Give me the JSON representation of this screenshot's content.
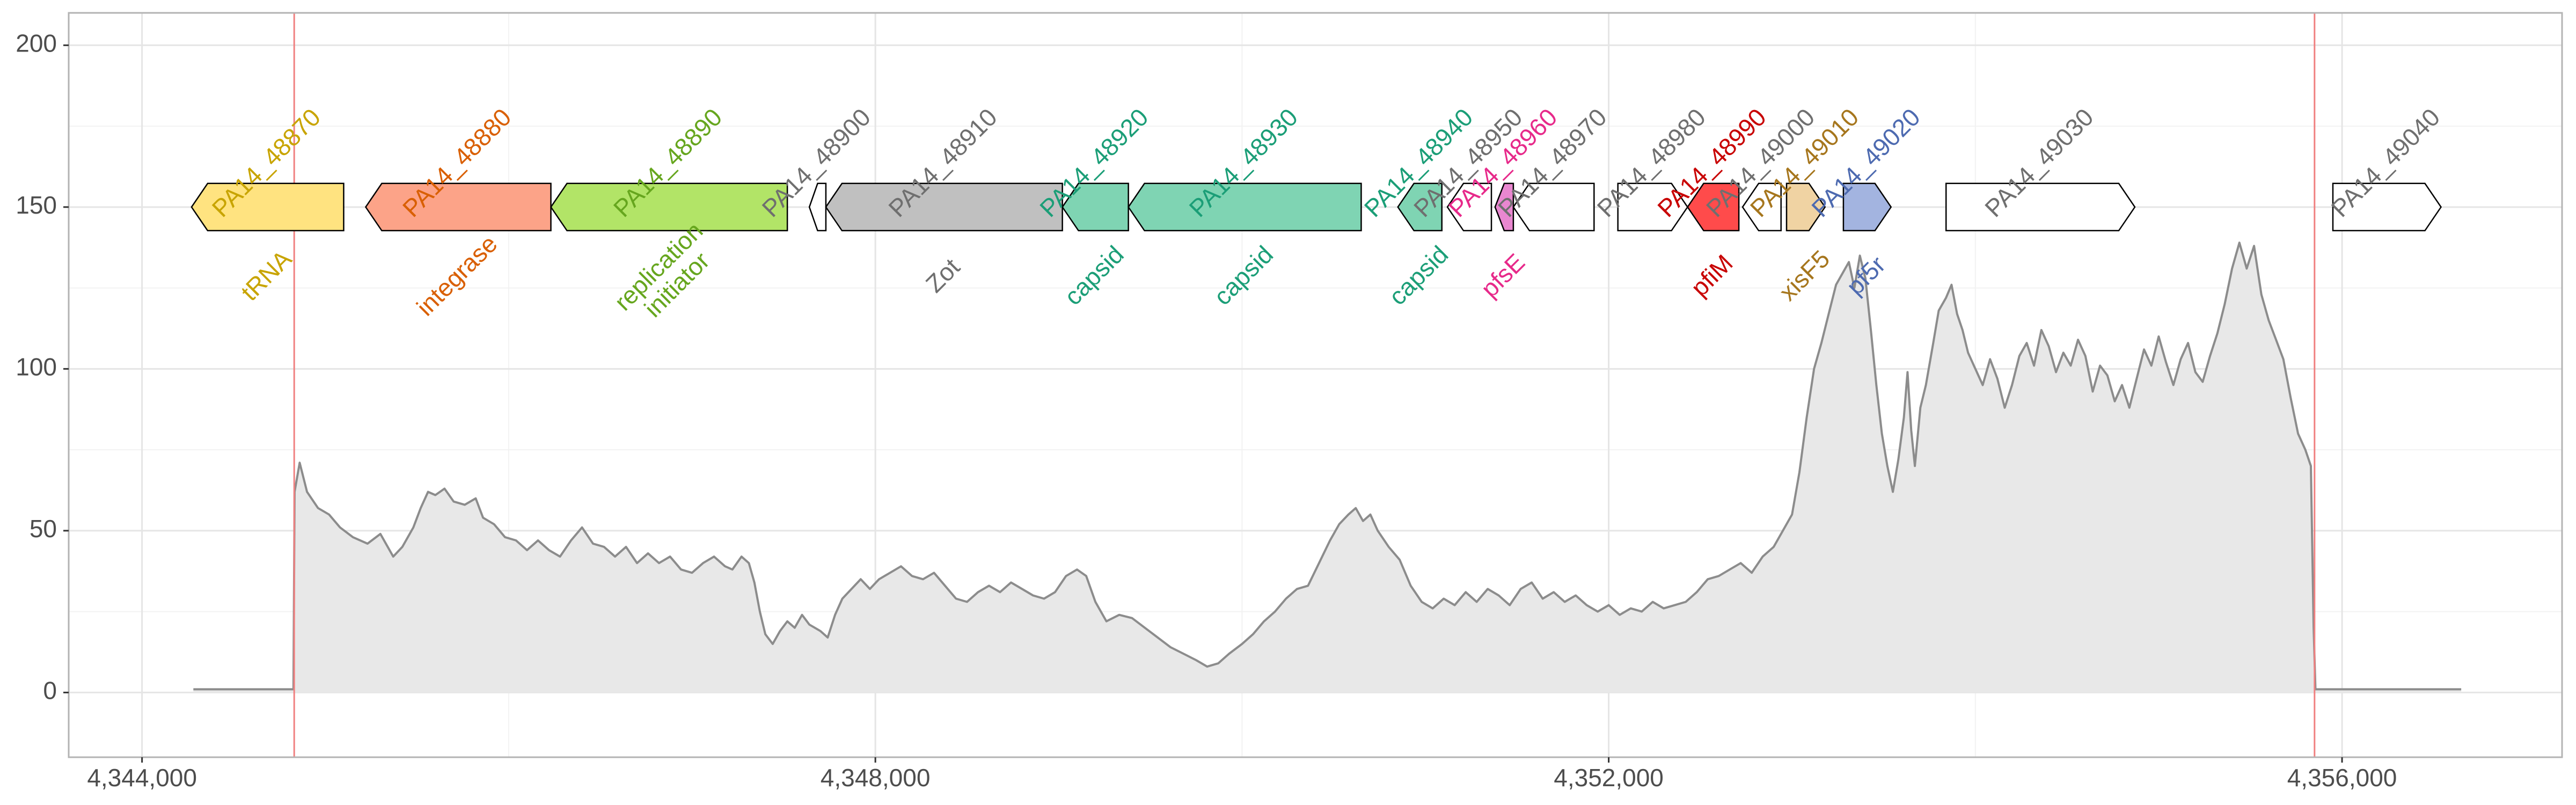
{
  "chart_data": {
    "type": "area",
    "title": "",
    "xlabel": "",
    "ylabel": "",
    "xlim": [
      4343600,
      4357200
    ],
    "ylim": [
      -20,
      210
    ],
    "grid": true,
    "x_ticks": [
      4344000,
      4348000,
      4352000,
      4356000
    ],
    "x_tick_labels": [
      "4,344,000",
      "4,348,000",
      "4,352,000",
      "4,356,000"
    ],
    "y_ticks": [
      0,
      50,
      100,
      150,
      200
    ],
    "y_tick_labels": [
      "0",
      "50",
      "100",
      "150",
      "200"
    ],
    "vlines": [
      4344830,
      4355850
    ],
    "vline_color": "#f08080",
    "coverage_fill": "#e8e8e8",
    "coverage_line": "#8c8c8c",
    "gene_y": 150,
    "coverage": [
      [
        4344280,
        1
      ],
      [
        4344500,
        1
      ],
      [
        4344700,
        1
      ],
      [
        4344826,
        1
      ],
      [
        4344832,
        62
      ],
      [
        4344860,
        71
      ],
      [
        4344900,
        62
      ],
      [
        4344960,
        57
      ],
      [
        4345020,
        55
      ],
      [
        4345080,
        51
      ],
      [
        4345150,
        48
      ],
      [
        4345230,
        46
      ],
      [
        4345300,
        49
      ],
      [
        4345370,
        42
      ],
      [
        4345420,
        45
      ],
      [
        4345480,
        51
      ],
      [
        4345520,
        57
      ],
      [
        4345560,
        62
      ],
      [
        4345600,
        61
      ],
      [
        4345650,
        63
      ],
      [
        4345700,
        59
      ],
      [
        4345760,
        58
      ],
      [
        4345820,
        60
      ],
      [
        4345860,
        54
      ],
      [
        4345920,
        52
      ],
      [
        4345980,
        48
      ],
      [
        4346040,
        47
      ],
      [
        4346100,
        44
      ],
      [
        4346160,
        47
      ],
      [
        4346220,
        44
      ],
      [
        4346280,
        42
      ],
      [
        4346340,
        47
      ],
      [
        4346400,
        51
      ],
      [
        4346460,
        46
      ],
      [
        4346520,
        45
      ],
      [
        4346580,
        42
      ],
      [
        4346640,
        45
      ],
      [
        4346700,
        40
      ],
      [
        4346760,
        43
      ],
      [
        4346820,
        40
      ],
      [
        4346880,
        42
      ],
      [
        4346940,
        38
      ],
      [
        4347000,
        37
      ],
      [
        4347060,
        40
      ],
      [
        4347120,
        42
      ],
      [
        4347180,
        39
      ],
      [
        4347220,
        38
      ],
      [
        4347270,
        42
      ],
      [
        4347310,
        40
      ],
      [
        4347340,
        34
      ],
      [
        4347370,
        25
      ],
      [
        4347400,
        18
      ],
      [
        4347440,
        15
      ],
      [
        4347480,
        19
      ],
      [
        4347520,
        22
      ],
      [
        4347560,
        20
      ],
      [
        4347600,
        24
      ],
      [
        4347640,
        21
      ],
      [
        4347700,
        19
      ],
      [
        4347740,
        17
      ],
      [
        4347780,
        24
      ],
      [
        4347820,
        29
      ],
      [
        4347870,
        32
      ],
      [
        4347920,
        35
      ],
      [
        4347970,
        32
      ],
      [
        4348020,
        35
      ],
      [
        4348080,
        37
      ],
      [
        4348140,
        39
      ],
      [
        4348200,
        36
      ],
      [
        4348260,
        35
      ],
      [
        4348320,
        37
      ],
      [
        4348380,
        33
      ],
      [
        4348440,
        29
      ],
      [
        4348500,
        28
      ],
      [
        4348560,
        31
      ],
      [
        4348620,
        33
      ],
      [
        4348680,
        31
      ],
      [
        4348740,
        34
      ],
      [
        4348800,
        32
      ],
      [
        4348860,
        30
      ],
      [
        4348920,
        29
      ],
      [
        4348980,
        31
      ],
      [
        4349040,
        36
      ],
      [
        4349100,
        38
      ],
      [
        4349150,
        36
      ],
      [
        4349200,
        28
      ],
      [
        4349260,
        22
      ],
      [
        4349330,
        24
      ],
      [
        4349400,
        23
      ],
      [
        4349470,
        20
      ],
      [
        4349540,
        17
      ],
      [
        4349610,
        14
      ],
      [
        4349680,
        12
      ],
      [
        4349750,
        10
      ],
      [
        4349810,
        8
      ],
      [
        4349870,
        9
      ],
      [
        4349930,
        12
      ],
      [
        4350000,
        15
      ],
      [
        4350060,
        18
      ],
      [
        4350120,
        22
      ],
      [
        4350180,
        25
      ],
      [
        4350240,
        29
      ],
      [
        4350300,
        32
      ],
      [
        4350360,
        33
      ],
      [
        4350420,
        40
      ],
      [
        4350480,
        47
      ],
      [
        4350530,
        52
      ],
      [
        4350580,
        55
      ],
      [
        4350620,
        57
      ],
      [
        4350660,
        53
      ],
      [
        4350700,
        55
      ],
      [
        4350740,
        50
      ],
      [
        4350800,
        45
      ],
      [
        4350860,
        41
      ],
      [
        4350920,
        33
      ],
      [
        4350980,
        28
      ],
      [
        4351040,
        26
      ],
      [
        4351100,
        29
      ],
      [
        4351160,
        27
      ],
      [
        4351220,
        31
      ],
      [
        4351280,
        28
      ],
      [
        4351340,
        32
      ],
      [
        4351400,
        30
      ],
      [
        4351460,
        27
      ],
      [
        4351520,
        32
      ],
      [
        4351580,
        34
      ],
      [
        4351640,
        29
      ],
      [
        4351700,
        31
      ],
      [
        4351760,
        28
      ],
      [
        4351820,
        30
      ],
      [
        4351880,
        27
      ],
      [
        4351940,
        25
      ],
      [
        4352000,
        27
      ],
      [
        4352060,
        24
      ],
      [
        4352120,
        26
      ],
      [
        4352180,
        25
      ],
      [
        4352240,
        28
      ],
      [
        4352300,
        26
      ],
      [
        4352360,
        27
      ],
      [
        4352420,
        28
      ],
      [
        4352480,
        31
      ],
      [
        4352540,
        35
      ],
      [
        4352600,
        36
      ],
      [
        4352660,
        38
      ],
      [
        4352720,
        40
      ],
      [
        4352780,
        37
      ],
      [
        4352840,
        42
      ],
      [
        4352900,
        45
      ],
      [
        4352950,
        50
      ],
      [
        4353000,
        55
      ],
      [
        4353040,
        68
      ],
      [
        4353080,
        85
      ],
      [
        4353120,
        100
      ],
      [
        4353160,
        108
      ],
      [
        4353200,
        117
      ],
      [
        4353240,
        126
      ],
      [
        4353280,
        130
      ],
      [
        4353310,
        133
      ],
      [
        4353340,
        125
      ],
      [
        4353370,
        135
      ],
      [
        4353400,
        128
      ],
      [
        4353430,
        112
      ],
      [
        4353460,
        95
      ],
      [
        4353490,
        80
      ],
      [
        4353520,
        70
      ],
      [
        4353550,
        62
      ],
      [
        4353580,
        72
      ],
      [
        4353610,
        85
      ],
      [
        4353630,
        99
      ],
      [
        4353650,
        81
      ],
      [
        4353670,
        70
      ],
      [
        4353700,
        88
      ],
      [
        4353730,
        95
      ],
      [
        4353770,
        108
      ],
      [
        4353800,
        118
      ],
      [
        4353840,
        122
      ],
      [
        4353870,
        126
      ],
      [
        4353900,
        117
      ],
      [
        4353930,
        112
      ],
      [
        4353960,
        105
      ],
      [
        4354000,
        100
      ],
      [
        4354040,
        95
      ],
      [
        4354080,
        103
      ],
      [
        4354120,
        97
      ],
      [
        4354160,
        88
      ],
      [
        4354200,
        95
      ],
      [
        4354240,
        104
      ],
      [
        4354280,
        108
      ],
      [
        4354320,
        101
      ],
      [
        4354360,
        112
      ],
      [
        4354400,
        107
      ],
      [
        4354440,
        99
      ],
      [
        4354480,
        105
      ],
      [
        4354520,
        101
      ],
      [
        4354560,
        109
      ],
      [
        4354600,
        104
      ],
      [
        4354640,
        93
      ],
      [
        4354680,
        101
      ],
      [
        4354720,
        98
      ],
      [
        4354760,
        90
      ],
      [
        4354800,
        95
      ],
      [
        4354840,
        88
      ],
      [
        4354880,
        97
      ],
      [
        4354920,
        106
      ],
      [
        4354960,
        101
      ],
      [
        4355000,
        110
      ],
      [
        4355040,
        102
      ],
      [
        4355080,
        95
      ],
      [
        4355120,
        103
      ],
      [
        4355160,
        108
      ],
      [
        4355200,
        99
      ],
      [
        4355240,
        96
      ],
      [
        4355280,
        104
      ],
      [
        4355320,
        111
      ],
      [
        4355360,
        120
      ],
      [
        4355400,
        131
      ],
      [
        4355440,
        139
      ],
      [
        4355480,
        131
      ],
      [
        4355520,
        138
      ],
      [
        4355560,
        123
      ],
      [
        4355600,
        115
      ],
      [
        4355640,
        109
      ],
      [
        4355680,
        103
      ],
      [
        4355720,
        91
      ],
      [
        4355760,
        80
      ],
      [
        4355800,
        75
      ],
      [
        4355830,
        70
      ],
      [
        4355845,
        20
      ],
      [
        4355855,
        1
      ],
      [
        4356000,
        1
      ],
      [
        4356200,
        1
      ],
      [
        4356400,
        1
      ],
      [
        4356650,
        1
      ]
    ],
    "genes": [
      {
        "name": "PA14_48870",
        "start": 4344270,
        "end": 4345100,
        "dir": "-",
        "fill": "#ffe380",
        "name_color": "#c8a400",
        "func": "tRNA",
        "func_color": "#c8a400"
      },
      {
        "name": "PA14_48880",
        "start": 4345220,
        "end": 4346230,
        "dir": "-",
        "fill": "#fca388",
        "name_color": "#d95f02",
        "func": "integrase",
        "func_color": "#d95f02"
      },
      {
        "name": "PA14_48890",
        "start": 4346230,
        "end": 4347520,
        "dir": "-",
        "fill": "#b2e467",
        "name_color": "#66a61e",
        "func": "replication initiator",
        "func_color": "#66a61e"
      },
      {
        "name": "PA14_48900",
        "start": 4347640,
        "end": 4347730,
        "dir": "-",
        "fill": "#ffffff",
        "name_color": "#6f6f6f",
        "func": "",
        "func_color": "#6f6f6f"
      },
      {
        "name": "PA14_48910",
        "start": 4347730,
        "end": 4349020,
        "dir": "-",
        "fill": "#c0c0c0",
        "name_color": "#6f6f6f",
        "func": "Zot",
        "func_color": "#6f6f6f"
      },
      {
        "name": "PA14_48920",
        "start": 4349020,
        "end": 4349380,
        "dir": "-",
        "fill": "#7fd4b3",
        "name_color": "#1b9e77",
        "func": "capsid",
        "func_color": "#1b9e77"
      },
      {
        "name": "PA14_48930",
        "start": 4349380,
        "end": 4350650,
        "dir": "-",
        "fill": "#7fd4b3",
        "name_color": "#1b9e77",
        "func": "capsid",
        "func_color": "#1b9e77"
      },
      {
        "name": "PA14_48940",
        "start": 4350850,
        "end": 4351090,
        "dir": "-",
        "fill": "#7fd4b3",
        "name_color": "#1b9e77",
        "func": "capsid",
        "func_color": "#1b9e77"
      },
      {
        "name": "PA14_48950",
        "start": 4351120,
        "end": 4351360,
        "dir": "-",
        "fill": "#ffffff",
        "name_color": "#6f6f6f",
        "func": "",
        "func_color": "#6f6f6f"
      },
      {
        "name": "PA14_48960",
        "start": 4351380,
        "end": 4351480,
        "dir": "-",
        "fill": "#e987d0",
        "name_color": "#e7298a",
        "func": "pfsE",
        "func_color": "#e7298a"
      },
      {
        "name": "PA14_48970",
        "start": 4351480,
        "end": 4351920,
        "dir": "-",
        "fill": "#ffffff",
        "name_color": "#6f6f6f",
        "func": "",
        "func_color": "#6f6f6f"
      },
      {
        "name": "PA14_48980",
        "start": 4352050,
        "end": 4352430,
        "dir": "+",
        "fill": "#ffffff",
        "name_color": "#6f6f6f",
        "func": "",
        "func_color": "#6f6f6f"
      },
      {
        "name": "PA14_48990",
        "start": 4352430,
        "end": 4352710,
        "dir": "-",
        "fill": "#ff4b4b",
        "name_color": "#c80000",
        "func": "pfiM",
        "func_color": "#c80000"
      },
      {
        "name": "PA14_49000",
        "start": 4352730,
        "end": 4352940,
        "dir": "-",
        "fill": "#ffffff",
        "name_color": "#6f6f6f",
        "func": "",
        "func_color": "#6f6f6f"
      },
      {
        "name": "PA14_49010",
        "start": 4352970,
        "end": 4353180,
        "dir": "+",
        "fill": "#f0d3a3",
        "name_color": "#a6761d",
        "func": "xisF5",
        "func_color": "#a6761d"
      },
      {
        "name": "PA14_49020",
        "start": 4353280,
        "end": 4353540,
        "dir": "+",
        "fill": "#a3b4e0",
        "name_color": "#4d6ab0",
        "func": "pf5r",
        "func_color": "#4d6ab0"
      },
      {
        "name": "PA14_49030",
        "start": 4353840,
        "end": 4354870,
        "dir": "+",
        "fill": "#ffffff",
        "name_color": "#6f6f6f",
        "func": "",
        "func_color": "#6f6f6f"
      },
      {
        "name": "PA14_49040",
        "start": 4355950,
        "end": 4356540,
        "dir": "+",
        "fill": "#ffffff",
        "name_color": "#6f6f6f",
        "func": "",
        "func_color": "#6f6f6f"
      }
    ]
  }
}
